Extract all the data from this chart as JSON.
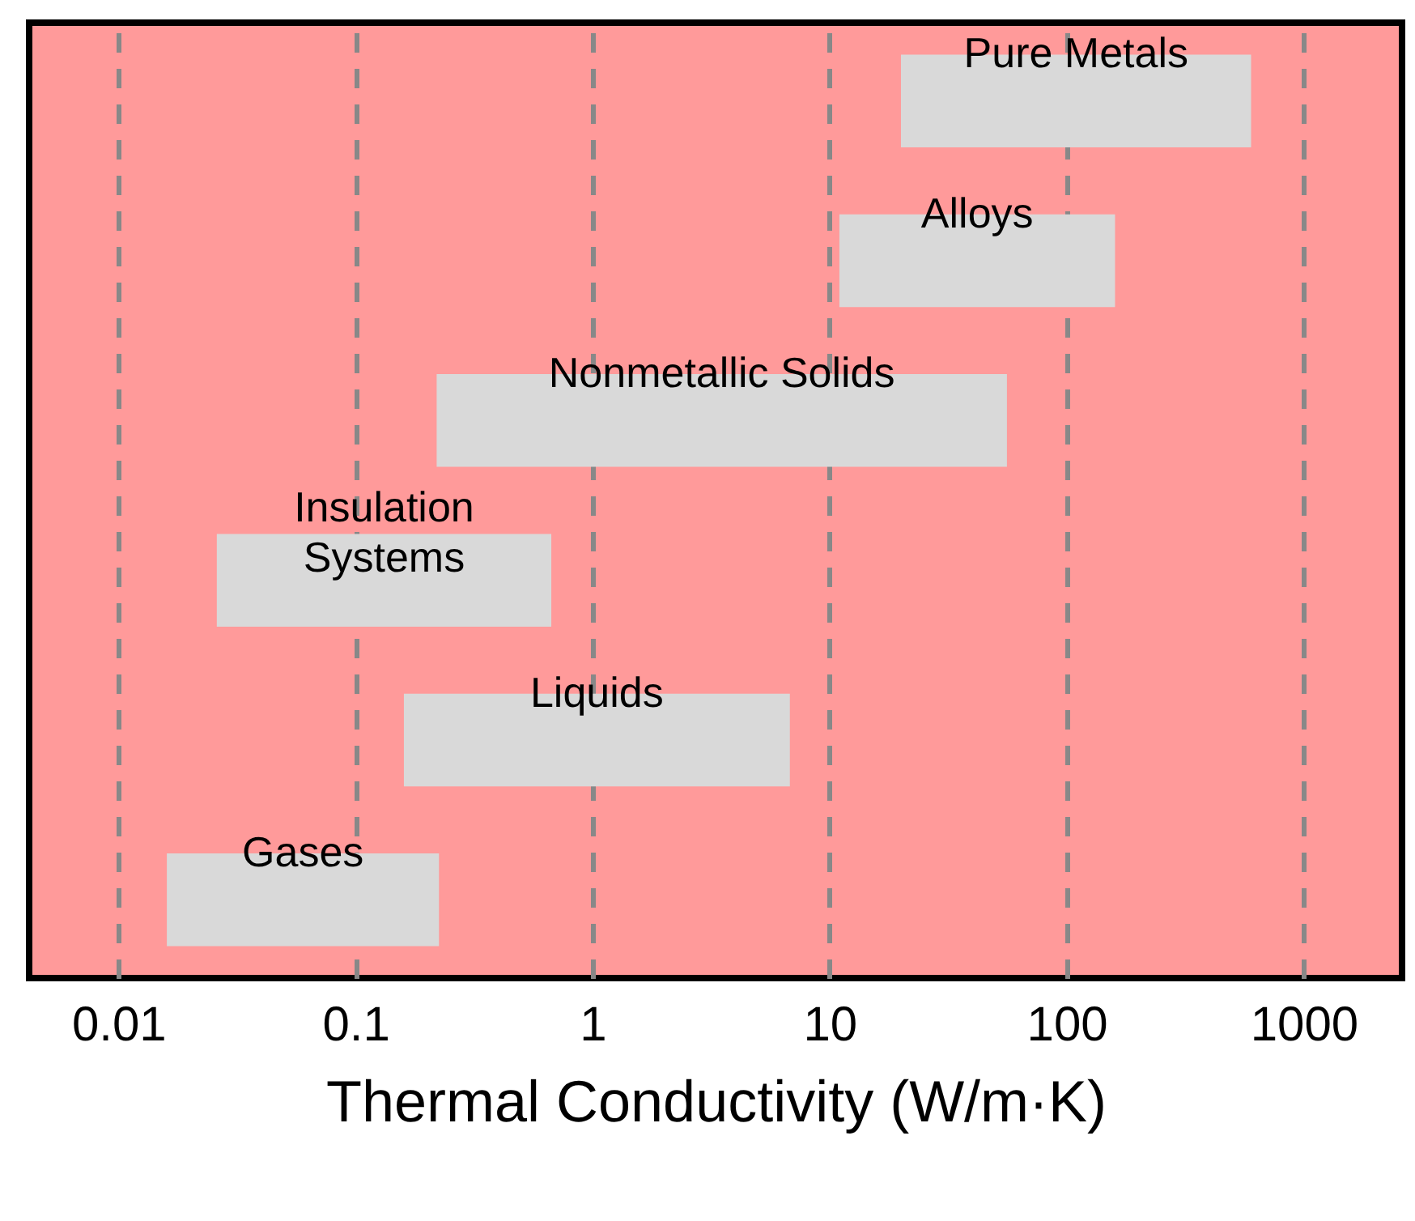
{
  "chart_data": {
    "type": "bar",
    "orientation": "horizontal",
    "xlabel": "Thermal Conductivity (W/m·K)",
    "categories": [
      "Pure Metals",
      "Alloys",
      "Nonmetallic Solids",
      "Insulation Systems",
      "Liquids",
      "Gases"
    ],
    "base": [
      20,
      11,
      0.22,
      0.026,
      0.16,
      0.016
    ],
    "values": [
      580,
      149,
      55.78,
      0.644,
      6.64,
      0.209
    ],
    "color": "#d9d9d9",
    "log": "x",
    "xlim": [
      0.0042,
      2600
    ],
    "xticks": [
      0.01,
      0.1,
      1,
      10,
      100,
      1000
    ],
    "grid": "x",
    "tick_labels": "x"
  }
}
